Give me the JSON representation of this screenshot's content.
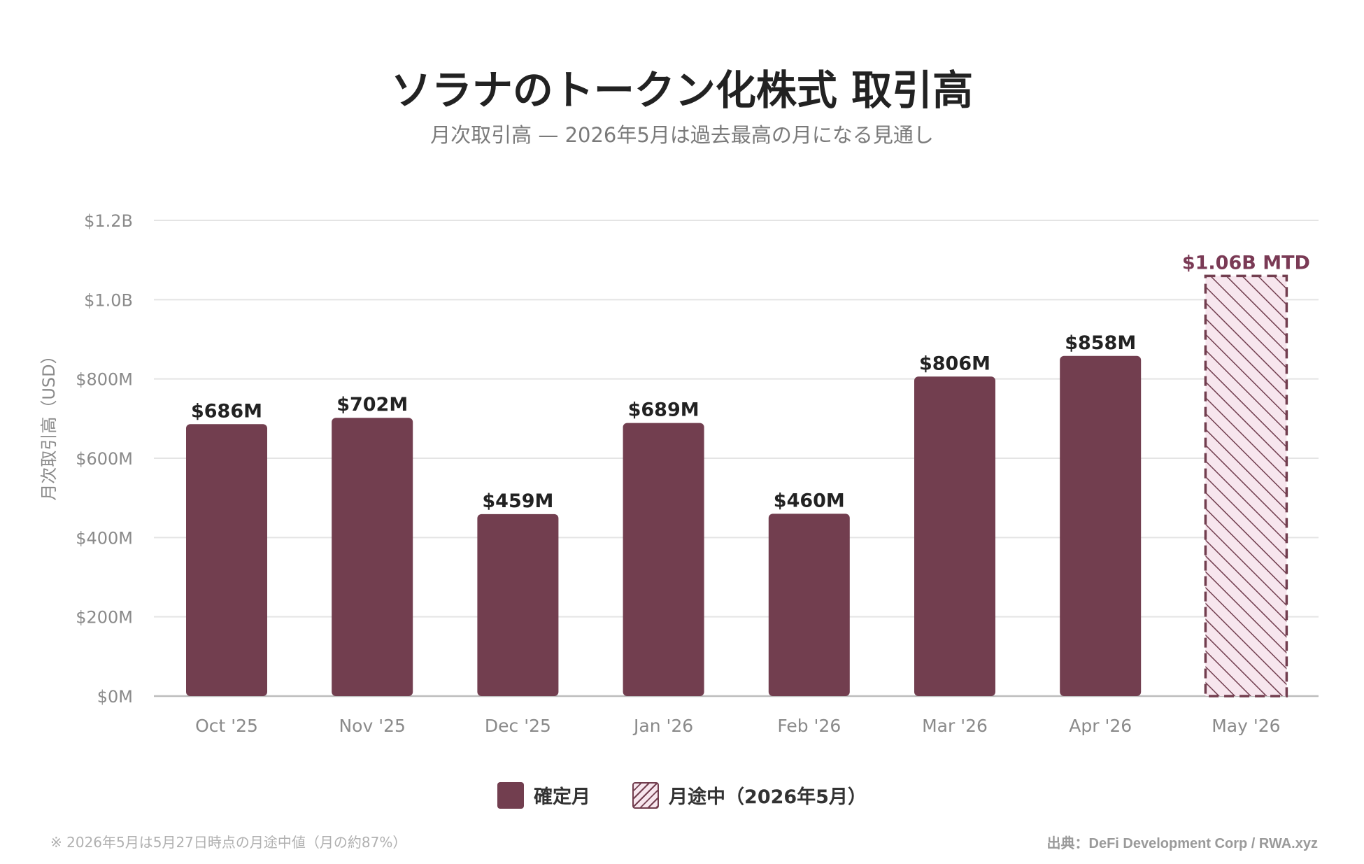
{
  "chart_data": {
    "type": "bar",
    "title": "ソラナのトークン化株式 取引高",
    "subtitle": "月次取引高 — 2026年5月は過去最高の月になる見通し",
    "ylabel": "月次取引高（USD）",
    "xlabel": "",
    "ylim": [
      0,
      1200
    ],
    "yticks": [
      0,
      200,
      400,
      600,
      800,
      1000,
      1200
    ],
    "ytick_labels": [
      "$0M",
      "$200M",
      "$400M",
      "$600M",
      "$800M",
      "$1.0B",
      "$1.2B"
    ],
    "grid": true,
    "legend_position": "bottom",
    "categories": [
      "Oct '25",
      "Nov '25",
      "Dec '25",
      "Jan '26",
      "Feb '26",
      "Mar '26",
      "Apr '26",
      "May '26"
    ],
    "values": [
      686,
      702,
      459,
      689,
      460,
      806,
      858,
      1060
    ],
    "value_labels": [
      "$686M",
      "$702M",
      "$459M",
      "$689M",
      "$460M",
      "$806M",
      "$858M",
      "$1.06B MTD"
    ],
    "partial": [
      false,
      false,
      false,
      false,
      false,
      false,
      false,
      true
    ],
    "series": [
      {
        "name": "確定月",
        "color": "#723e4f"
      },
      {
        "name": "月途中（2026年5月）",
        "color": "#723e4f",
        "pattern": "hatched"
      }
    ]
  },
  "footnote": "※ 2026年5月は5月27日時点の月途中値（月の約87%）",
  "source": "出典：DeFi Development Corp / RWA.xyz",
  "colors": {
    "bar": "#723e4f",
    "partial_fill": "#f7e6ee",
    "partial_label": "#7a3a55",
    "grid": "#e4e4e4",
    "axis_text": "#8a8a8a"
  }
}
